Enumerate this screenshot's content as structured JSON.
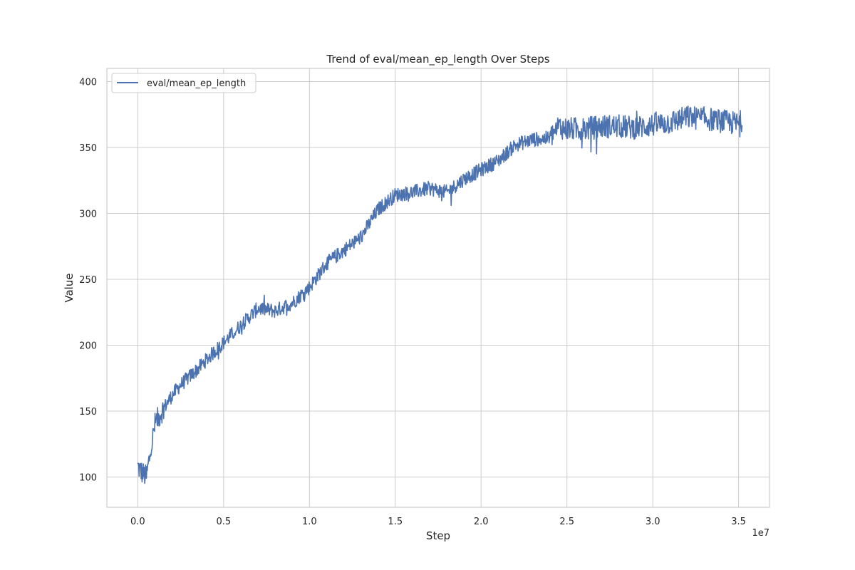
{
  "chart_data": {
    "type": "line",
    "title": "Trend of eval/mean_ep_length Over Steps",
    "xlabel": "Step",
    "ylabel": "Value",
    "x_offset_label": "1e7",
    "x_scale": 10000000,
    "xlim": [
      -0.18,
      3.68
    ],
    "ylim": [
      77,
      410
    ],
    "x_ticks": [
      0.0,
      0.5,
      1.0,
      1.5,
      2.0,
      2.5,
      3.0,
      3.5
    ],
    "x_tick_labels": [
      "0.0",
      "0.5",
      "1.0",
      "1.5",
      "2.0",
      "2.5",
      "3.0",
      "3.5"
    ],
    "y_ticks": [
      100,
      150,
      200,
      250,
      300,
      350,
      400
    ],
    "y_tick_labels": [
      "100",
      "150",
      "200",
      "250",
      "300",
      "350",
      "400"
    ],
    "grid": true,
    "legend_position": "top-left",
    "colors": {
      "line": "#4c72b0",
      "grid": "#cccccc",
      "frame": "#cccccc"
    },
    "series": [
      {
        "name": "eval/mean_ep_length",
        "x": [
          0.0,
          0.02,
          0.05,
          0.1,
          0.15,
          0.2,
          0.25,
          0.3,
          0.35,
          0.4,
          0.5,
          0.6,
          0.7,
          0.8,
          0.9,
          1.0,
          1.1,
          1.2,
          1.3,
          1.4,
          1.5,
          1.6,
          1.7,
          1.8,
          1.9,
          2.0,
          2.1,
          2.2,
          2.3,
          2.4,
          2.45,
          2.5,
          2.6,
          2.7,
          2.8,
          2.9,
          3.0,
          3.1,
          3.2,
          3.3,
          3.4,
          3.5,
          3.52
        ],
        "y": [
          108,
          104,
          100,
          140,
          152,
          162,
          170,
          176,
          182,
          189,
          202,
          215,
          228,
          226,
          232,
          244,
          262,
          272,
          282,
          303,
          314,
          316,
          319,
          316,
          326,
          333,
          340,
          352,
          356,
          357,
          366,
          364,
          364,
          366,
          366,
          365,
          367,
          369,
          373,
          372,
          370,
          368,
          371
        ]
      }
    ]
  }
}
